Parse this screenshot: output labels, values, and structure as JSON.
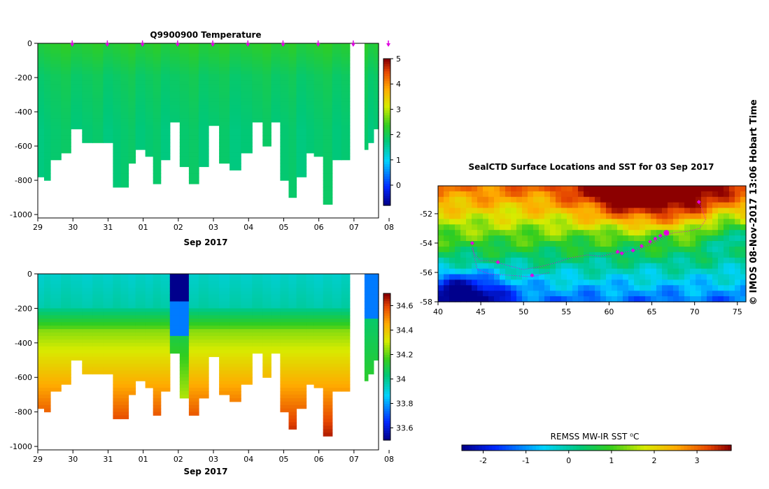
{
  "chart_data": [
    {
      "type": "heatmap",
      "name": "temperature-section",
      "title": "Q9900900  Temperature",
      "xlabel": "Sep 2017",
      "x_ticks": [
        "29",
        "30",
        "31",
        "01",
        "02",
        "03",
        "04",
        "05",
        "06",
        "07",
        "08"
      ],
      "y_ticks": [
        "0",
        "-200",
        "-400",
        "-600",
        "-800",
        "-1000"
      ],
      "ylim": [
        -1020,
        0
      ],
      "colorbar_ticks": [
        "5",
        "4",
        "3",
        "2",
        "1",
        "0"
      ],
      "colorbar_range": [
        -0.8,
        5
      ],
      "profile_markers_days": [
        1,
        2,
        3,
        4,
        5,
        6,
        7,
        8,
        9,
        10
      ]
    },
    {
      "type": "heatmap",
      "name": "salinity-section",
      "title": "",
      "xlabel": "Sep 2017",
      "x_ticks": [
        "29",
        "30",
        "31",
        "01",
        "02",
        "03",
        "04",
        "05",
        "06",
        "07",
        "08"
      ],
      "y_ticks": [
        "0",
        "-200",
        "-400",
        "-600",
        "-800",
        "-1000"
      ],
      "ylim": [
        -1020,
        0
      ],
      "colorbar_ticks": [
        "34.6",
        "34.4",
        "34.2",
        "34",
        "33.8",
        "33.6"
      ],
      "colorbar_range": [
        33.5,
        34.7
      ]
    },
    {
      "type": "map",
      "name": "sst-map",
      "title": "SealCTD Surface Locations and SST for 03 Sep 2017",
      "x_ticks": [
        "40",
        "45",
        "50",
        "55",
        "60",
        "65",
        "70",
        "75"
      ],
      "y_ticks": [
        "-52",
        "-54",
        "-56",
        "-58"
      ],
      "lon_range": [
        40,
        76
      ],
      "lat_range": [
        -58,
        -50.1
      ],
      "colorbar_label": "REMSS MW-IR SST ⁰C",
      "colorbar_ticks": [
        "-2",
        "-1",
        "0",
        "1",
        "2",
        "3"
      ],
      "colorbar_range": [
        -2.5,
        3.8
      ],
      "track_lon": [
        70.5,
        70.8,
        71.3,
        70.6,
        69.2,
        67.5,
        66.7,
        65.8,
        64.8,
        63.5,
        62,
        60.6,
        59,
        57.5,
        55.5,
        54,
        52,
        50,
        48,
        46.3,
        45,
        44.3,
        44.0,
        44.6,
        46,
        48.5,
        51,
        53
      ],
      "track_lat": [
        -51.2,
        -51.6,
        -52.4,
        -53.0,
        -53.2,
        -53.3,
        -53.5,
        -53.8,
        -54.1,
        -54.4,
        -54.6,
        -54.7,
        -54.9,
        -54.8,
        -55.0,
        -55.3,
        -55.6,
        -55.8,
        -55.5,
        -55.2,
        -55.2,
        -54.8,
        -54.3,
        -55.8,
        -56.1,
        -56.2,
        -56.3,
        -56.0
      ],
      "profile_lon": [
        66.7,
        66.0,
        65.4,
        64.8,
        63.8,
        62.8,
        61.5,
        61.0,
        44.0,
        47.0,
        51.0,
        70.5
      ],
      "profile_lat": [
        -53.3,
        -53.5,
        -53.7,
        -53.9,
        -54.2,
        -54.5,
        -54.7,
        -54.6,
        -54.0,
        -55.3,
        -56.2,
        -51.2
      ],
      "latest_position": [
        66.7,
        -53.3
      ]
    }
  ],
  "side_label": "©  IMOS 08-Nov-2017 13:06 Hobart Time"
}
